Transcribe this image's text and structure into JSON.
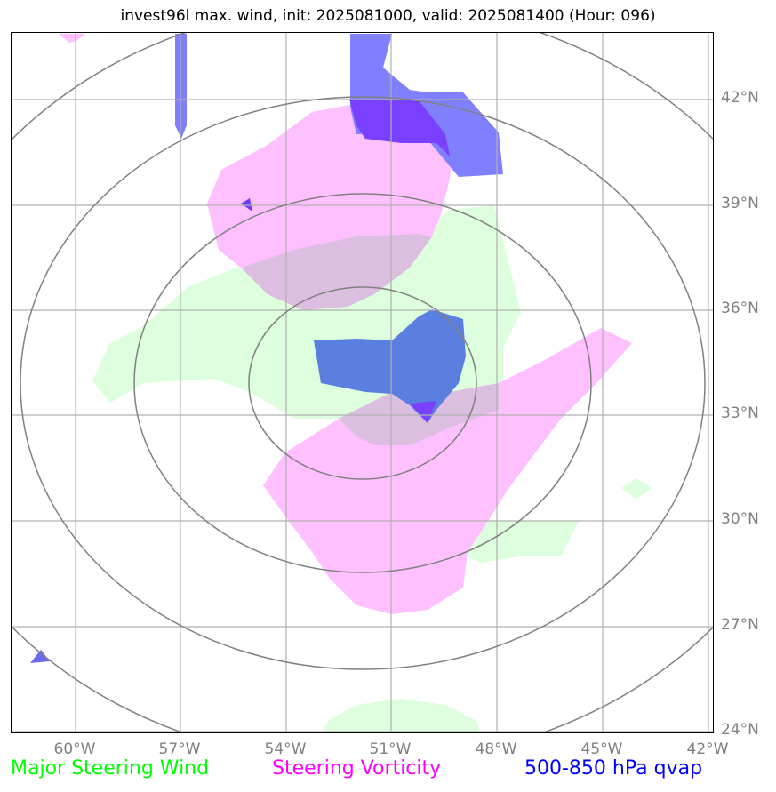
{
  "title": "invest96l max. wind, init: 2025081000, valid: 2025081400 (Hour: 096)",
  "latitude_labels": [
    "42°N",
    "39°N",
    "36°N",
    "33°N",
    "30°N",
    "27°N",
    "24°N"
  ],
  "longitude_labels": [
    "60°W",
    "57°W",
    "54°W",
    "51°W",
    "48°W",
    "45°W",
    "42°W"
  ],
  "legend": [
    {
      "label": "Major Steering Wind",
      "color": "#00ff00"
    },
    {
      "label": "Steering Vorticity",
      "color": "#ff00ff"
    },
    {
      "label": "500-850 hPa qvap",
      "color": "#0000ff"
    }
  ],
  "layer_colors": {
    "steering_wind_fill": "#ddffdd",
    "steering_vorticity_fill": "#ffc0ff",
    "qvap_fill": "#8080ff",
    "qvap_dark": "#7a40ff",
    "qvap_overlap": "#5b7fe0",
    "gridline": "#b0b0b0",
    "range_ring": "#808080"
  }
}
